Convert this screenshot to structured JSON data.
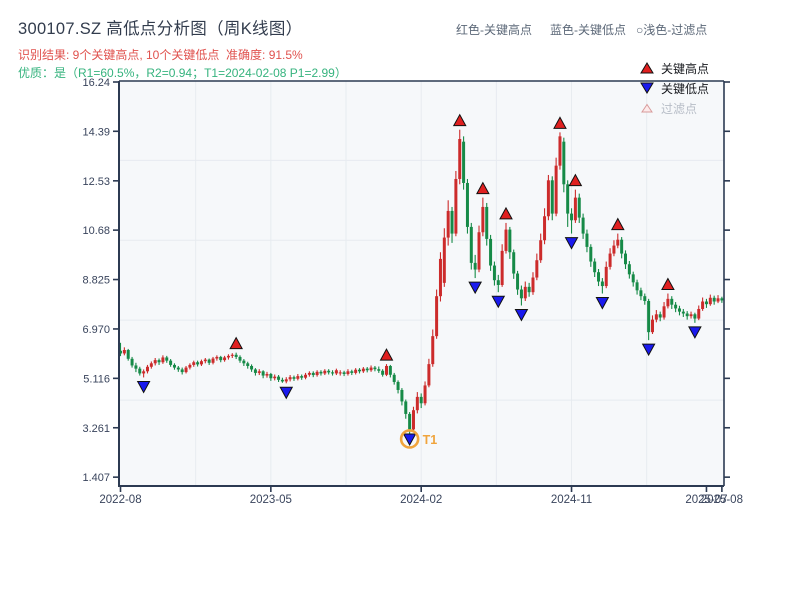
{
  "title": "300107.SZ 高低点分析图（周K线图）",
  "subtitle_result": "识别结果: 9个关键高点, 10个关键低点  准确度: 91.5%",
  "subtitle_quality": "优质：是（R1=60.5%，R2=0.94；T1=2024-02-08 P1=2.99）",
  "header_legend": {
    "high_label": "红色-关键高点",
    "low_label": "蓝色-关键低点",
    "filter_label": "○浅色-过滤点"
  },
  "chart_legend": {
    "high_label": "关键高点",
    "low_label": "关键低点",
    "filter_label": "过滤点"
  },
  "colors": {
    "up": "#cc2b2b",
    "down": "#168a47",
    "marker_high": "#e02020",
    "marker_low": "#1a1aee",
    "marker_filter_fill": "#fdeaea",
    "marker_filter_edge": "#d89b9b",
    "marker_edge": "#111111",
    "t1_orange": "#f0a43c",
    "plot_bg": "#f6f8fa",
    "grid": "#e7ebf0",
    "spine": "#2c3a52",
    "tick_text": "#39445c"
  },
  "chart_data": {
    "type": "candlestick",
    "title": "300107.SZ 高低点分析图（周K线图）",
    "y_axis": {
      "tick_labels": [
        "16.24",
        "14.39",
        "12.53",
        "10.68",
        "8.825",
        "6.970",
        "5.116",
        "3.261",
        "1.407"
      ]
    },
    "x_axis": {
      "ticks": [
        {
          "label": "2022-08",
          "week": 0
        },
        {
          "label": "2023-05",
          "week": 39
        },
        {
          "label": "2024-02",
          "week": 78
        },
        {
          "label": "2024-11",
          "week": 117
        },
        {
          "label": "2025-07",
          "week": 152
        },
        {
          "label": "2025-08",
          "week": 156
        }
      ]
    },
    "grid": {
      "x_weeks": [
        19.5,
        39,
        58.5,
        78,
        97.5,
        117,
        136.5
      ],
      "y_values": [
        13.3,
        10.3,
        7.3,
        4.3
      ]
    },
    "candles_ohlc": [
      [
        6.15,
        6.45,
        5.95,
        6.05
      ],
      [
        6.05,
        6.28,
        5.98,
        6.18
      ],
      [
        6.18,
        6.22,
        5.78,
        5.85
      ],
      [
        5.85,
        5.92,
        5.52,
        5.6
      ],
      [
        5.6,
        5.7,
        5.35,
        5.48
      ],
      [
        5.48,
        5.55,
        5.22,
        5.3
      ],
      [
        5.3,
        5.45,
        5.15,
        5.38
      ],
      [
        5.38,
        5.62,
        5.3,
        5.55
      ],
      [
        5.55,
        5.75,
        5.48,
        5.68
      ],
      [
        5.68,
        5.88,
        5.6,
        5.8
      ],
      [
        5.8,
        5.86,
        5.62,
        5.72
      ],
      [
        5.72,
        5.98,
        5.66,
        5.9
      ],
      [
        5.9,
        5.96,
        5.7,
        5.78
      ],
      [
        5.78,
        5.84,
        5.55,
        5.62
      ],
      [
        5.62,
        5.68,
        5.44,
        5.52
      ],
      [
        5.52,
        5.58,
        5.36,
        5.45
      ],
      [
        5.45,
        5.52,
        5.26,
        5.35
      ],
      [
        5.35,
        5.58,
        5.3,
        5.52
      ],
      [
        5.52,
        5.68,
        5.45,
        5.62
      ],
      [
        5.62,
        5.78,
        5.55,
        5.72
      ],
      [
        5.72,
        5.78,
        5.56,
        5.64
      ],
      [
        5.64,
        5.82,
        5.58,
        5.76
      ],
      [
        5.76,
        5.88,
        5.68,
        5.82
      ],
      [
        5.82,
        5.86,
        5.62,
        5.7
      ],
      [
        5.7,
        5.92,
        5.64,
        5.86
      ],
      [
        5.86,
        5.98,
        5.78,
        5.92
      ],
      [
        5.92,
        5.96,
        5.72,
        5.8
      ],
      [
        5.8,
        5.96,
        5.74,
        5.9
      ],
      [
        5.9,
        6.02,
        5.82,
        5.96
      ],
      [
        5.96,
        6.06,
        5.88,
        6.0
      ],
      [
        6.0,
        6.08,
        5.84,
        5.92
      ],
      [
        5.92,
        5.98,
        5.7,
        5.78
      ],
      [
        5.78,
        5.84,
        5.58,
        5.68
      ],
      [
        5.68,
        5.74,
        5.48,
        5.58
      ],
      [
        5.58,
        5.64,
        5.36,
        5.45
      ],
      [
        5.45,
        5.5,
        5.22,
        5.32
      ],
      [
        5.32,
        5.46,
        5.24,
        5.38
      ],
      [
        5.38,
        5.42,
        5.12,
        5.22
      ],
      [
        5.22,
        5.36,
        5.14,
        5.28
      ],
      [
        5.28,
        5.32,
        5.02,
        5.12
      ],
      [
        5.12,
        5.26,
        5.04,
        5.18
      ],
      [
        5.18,
        5.24,
        4.98,
        5.06
      ],
      [
        5.06,
        5.14,
        4.95,
        5.0
      ],
      [
        5.0,
        5.16,
        4.93,
        5.08
      ],
      [
        5.08,
        5.24,
        5.0,
        5.16
      ],
      [
        5.16,
        5.22,
        5.02,
        5.1
      ],
      [
        5.1,
        5.28,
        5.04,
        5.2
      ],
      [
        5.2,
        5.26,
        5.06,
        5.14
      ],
      [
        5.14,
        5.32,
        5.08,
        5.25
      ],
      [
        5.25,
        5.38,
        5.18,
        5.32
      ],
      [
        5.32,
        5.38,
        5.16,
        5.24
      ],
      [
        5.24,
        5.42,
        5.18,
        5.36
      ],
      [
        5.36,
        5.42,
        5.22,
        5.3
      ],
      [
        5.3,
        5.46,
        5.24,
        5.4
      ],
      [
        5.4,
        5.46,
        5.26,
        5.34
      ],
      [
        5.34,
        5.42,
        5.22,
        5.3
      ],
      [
        5.3,
        5.48,
        5.24,
        5.42
      ],
      [
        5.3,
        5.42,
        5.22,
        5.34
      ],
      [
        5.34,
        5.4,
        5.2,
        5.28
      ],
      [
        5.28,
        5.46,
        5.22,
        5.38
      ],
      [
        5.38,
        5.44,
        5.24,
        5.32
      ],
      [
        5.32,
        5.5,
        5.26,
        5.44
      ],
      [
        5.44,
        5.5,
        5.3,
        5.38
      ],
      [
        5.38,
        5.54,
        5.32,
        5.48
      ],
      [
        5.48,
        5.54,
        5.34,
        5.42
      ],
      [
        5.42,
        5.6,
        5.36,
        5.52
      ],
      [
        5.52,
        5.58,
        5.38,
        5.46
      ],
      [
        5.46,
        5.56,
        5.32,
        5.4
      ],
      [
        5.4,
        5.46,
        5.18,
        5.25
      ],
      [
        5.25,
        5.65,
        5.2,
        5.58
      ],
      [
        5.58,
        5.62,
        5.15,
        5.25
      ],
      [
        5.25,
        5.32,
        4.88,
        4.98
      ],
      [
        4.98,
        5.04,
        4.55,
        4.68
      ],
      [
        4.68,
        4.75,
        4.1,
        4.25
      ],
      [
        4.25,
        4.32,
        3.6,
        3.78
      ],
      [
        3.78,
        3.85,
        2.99,
        3.2
      ],
      [
        3.2,
        4.05,
        3.1,
        3.92
      ],
      [
        3.92,
        4.6,
        3.8,
        4.42
      ],
      [
        4.42,
        4.55,
        4.0,
        4.18
      ],
      [
        4.18,
        5.0,
        4.1,
        4.85
      ],
      [
        4.85,
        5.85,
        4.78,
        5.65
      ],
      [
        5.65,
        6.95,
        5.55,
        6.7
      ],
      [
        6.7,
        8.45,
        6.6,
        8.2
      ],
      [
        8.2,
        9.85,
        8.0,
        9.6
      ],
      [
        8.7,
        10.75,
        8.55,
        10.4
      ],
      [
        10.4,
        11.8,
        10.1,
        11.4
      ],
      [
        11.4,
        11.55,
        10.2,
        10.55
      ],
      [
        10.55,
        12.9,
        10.45,
        12.6
      ],
      [
        12.6,
        14.45,
        12.4,
        14.1
      ],
      [
        14.0,
        14.2,
        12.2,
        12.45
      ],
      [
        12.45,
        12.6,
        10.55,
        10.8
      ],
      [
        10.8,
        10.95,
        9.2,
        9.45
      ],
      [
        9.45,
        9.75,
        8.88,
        9.2
      ],
      [
        9.2,
        10.85,
        9.1,
        10.6
      ],
      [
        10.6,
        11.9,
        10.45,
        11.55
      ],
      [
        11.55,
        11.7,
        10.1,
        10.35
      ],
      [
        10.35,
        10.5,
        9.15,
        9.35
      ],
      [
        9.35,
        9.5,
        8.6,
        8.8
      ],
      [
        8.8,
        9.0,
        8.35,
        8.62
      ],
      [
        8.62,
        10.15,
        8.55,
        9.9
      ],
      [
        9.9,
        10.95,
        9.8,
        10.7
      ],
      [
        10.7,
        10.8,
        9.6,
        9.85
      ],
      [
        9.85,
        9.95,
        8.85,
        9.05
      ],
      [
        9.05,
        9.15,
        8.25,
        8.45
      ],
      [
        8.45,
        8.6,
        7.85,
        8.12
      ],
      [
        8.12,
        8.75,
        8.02,
        8.55
      ],
      [
        8.55,
        8.7,
        8.18,
        8.35
      ],
      [
        8.35,
        9.1,
        8.25,
        8.9
      ],
      [
        8.9,
        9.8,
        8.8,
        9.55
      ],
      [
        9.55,
        10.55,
        9.45,
        10.3
      ],
      [
        10.3,
        11.5,
        10.15,
        11.2
      ],
      [
        11.2,
        12.75,
        11.05,
        12.55
      ],
      [
        12.55,
        12.7,
        11.05,
        11.3
      ],
      [
        11.3,
        13.4,
        11.2,
        13.1
      ],
      [
        13.1,
        14.35,
        12.95,
        14.2
      ],
      [
        14.0,
        14.15,
        12.1,
        12.4
      ],
      [
        12.4,
        12.55,
        10.8,
        11.3
      ],
      [
        11.3,
        11.5,
        10.55,
        11.05
      ],
      [
        11.05,
        12.2,
        10.95,
        11.9
      ],
      [
        11.9,
        12.05,
        10.95,
        11.15
      ],
      [
        11.15,
        11.3,
        10.35,
        10.55
      ],
      [
        10.55,
        10.7,
        9.85,
        10.05
      ],
      [
        10.05,
        10.15,
        9.3,
        9.5
      ],
      [
        9.5,
        9.62,
        8.92,
        9.1
      ],
      [
        9.1,
        9.22,
        8.58,
        8.75
      ],
      [
        8.75,
        8.88,
        8.3,
        8.58
      ],
      [
        8.58,
        9.5,
        8.5,
        9.3
      ],
      [
        9.3,
        10.0,
        9.2,
        9.8
      ],
      [
        9.8,
        10.3,
        9.7,
        10.1
      ],
      [
        10.1,
        10.55,
        10.0,
        10.32
      ],
      [
        10.32,
        10.42,
        9.62,
        9.8
      ],
      [
        9.8,
        9.92,
        9.22,
        9.4
      ],
      [
        9.4,
        9.52,
        8.86,
        9.02
      ],
      [
        9.02,
        9.12,
        8.56,
        8.72
      ],
      [
        8.72,
        8.82,
        8.26,
        8.42
      ],
      [
        8.42,
        8.52,
        8.05,
        8.2
      ],
      [
        8.2,
        8.3,
        7.88,
        8.02
      ],
      [
        8.02,
        8.1,
        6.55,
        6.85
      ],
      [
        6.85,
        7.48,
        6.78,
        7.32
      ],
      [
        7.32,
        7.68,
        7.22,
        7.52
      ],
      [
        7.52,
        7.62,
        7.26,
        7.4
      ],
      [
        7.4,
        7.98,
        7.32,
        7.82
      ],
      [
        7.82,
        8.3,
        7.74,
        8.1
      ],
      [
        8.1,
        8.2,
        7.72,
        7.88
      ],
      [
        7.88,
        7.98,
        7.6,
        7.74
      ],
      [
        7.74,
        7.84,
        7.48,
        7.62
      ],
      [
        7.62,
        7.72,
        7.42,
        7.55
      ],
      [
        7.55,
        7.64,
        7.32,
        7.45
      ],
      [
        7.45,
        7.62,
        7.36,
        7.52
      ],
      [
        7.52,
        7.58,
        7.2,
        7.36
      ],
      [
        7.36,
        7.85,
        7.3,
        7.72
      ],
      [
        7.72,
        8.15,
        7.65,
        8.0
      ],
      [
        8.0,
        8.1,
        7.76,
        7.9
      ],
      [
        7.9,
        8.26,
        7.84,
        8.14
      ],
      [
        8.14,
        8.22,
        7.88,
        8.0
      ],
      [
        8.0,
        8.24,
        7.94,
        8.12
      ],
      [
        8.12,
        8.18,
        7.95,
        8.04
      ]
    ],
    "key_high_points": [
      {
        "week": 30,
        "price": 6.08
      },
      {
        "week": 69,
        "price": 5.65
      },
      {
        "week": 88,
        "price": 14.45
      },
      {
        "week": 94,
        "price": 11.9
      },
      {
        "week": 100,
        "price": 10.95
      },
      {
        "week": 114,
        "price": 14.35
      },
      {
        "week": 118,
        "price": 12.2
      },
      {
        "week": 129,
        "price": 10.55
      },
      {
        "week": 142,
        "price": 8.3
      }
    ],
    "key_low_points": [
      {
        "week": 6,
        "price": 5.15
      },
      {
        "week": 43,
        "price": 4.93
      },
      {
        "week": 75,
        "price": 2.99
      },
      {
        "week": 92,
        "price": 8.88
      },
      {
        "week": 98,
        "price": 8.35
      },
      {
        "week": 104,
        "price": 7.85
      },
      {
        "week": 117,
        "price": 10.55
      },
      {
        "week": 125,
        "price": 8.3
      },
      {
        "week": 137,
        "price": 6.55
      },
      {
        "week": 149,
        "price": 7.2
      }
    ],
    "t1_annotation": {
      "week": 75,
      "price": 2.99,
      "label": "T1"
    }
  }
}
